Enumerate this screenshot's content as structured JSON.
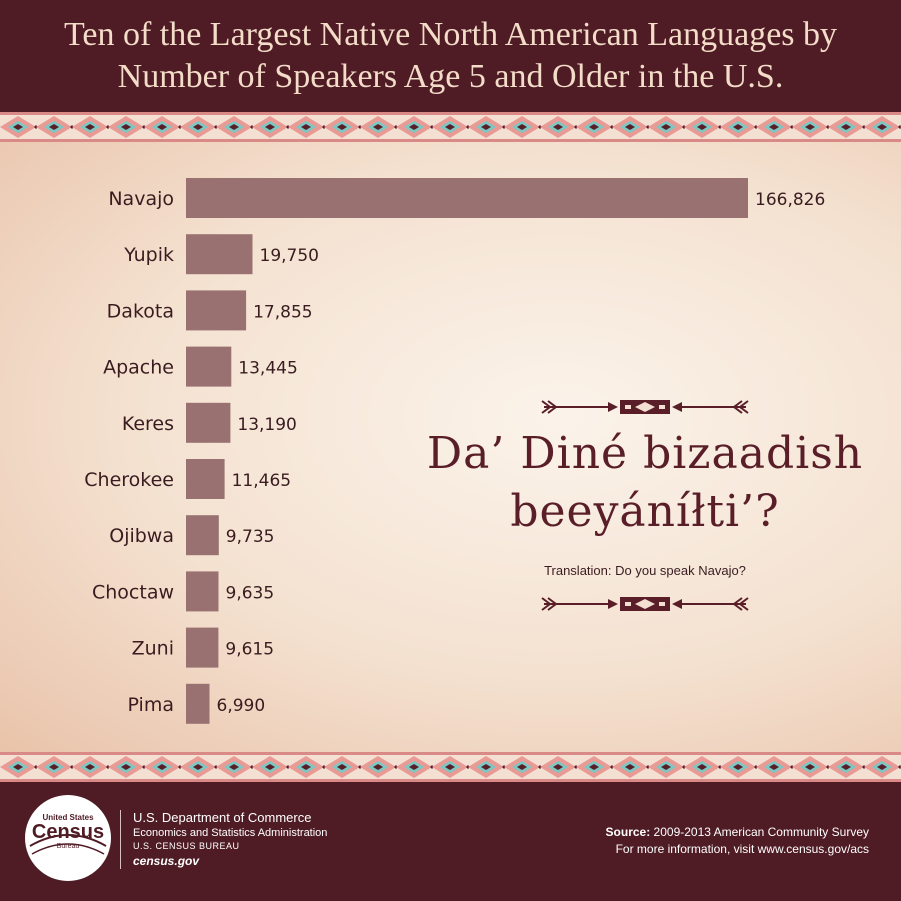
{
  "header": {
    "title_line1": "Ten of the Largest Native North American Languages by",
    "title_line2": "Number of Speakers Age 5 and Older in the U.S."
  },
  "chart_data": {
    "type": "bar",
    "orientation": "horizontal",
    "categories": [
      "Navajo",
      "Yupik",
      "Dakota",
      "Apache",
      "Keres",
      "Cherokee",
      "Ojibwa",
      "Choctaw",
      "Zuni",
      "Pima"
    ],
    "values": [
      166826,
      19750,
      17855,
      13445,
      13190,
      11465,
      9735,
      9635,
      9615,
      6990
    ],
    "value_labels": [
      "166,826",
      "19,750",
      "17,855",
      "13,445",
      "13,190",
      "11,465",
      "9,735",
      "9,635",
      "9,615",
      "6,990"
    ],
    "bar_color": "#9a7171",
    "grid": false
  },
  "phrase": {
    "line1": "Da’ Diné bizaadish",
    "line2": "beeyáníłti’?",
    "translation": "Translation: Do you speak Navajo?"
  },
  "footer": {
    "logo_top": "United States",
    "logo_main": "Census",
    "logo_bottom": "Bureau",
    "dept_line1": "U.S. Department of Commerce",
    "dept_line2": "Economics and Statistics Administration",
    "dept_line3": "U.S. CENSUS BUREAU",
    "dept_line4": "census.gov",
    "source_label": "Source:",
    "source_text": " 2009-2013 American Community Survey",
    "more_info": "For more information, visit www.census.gov/acs"
  },
  "colors": {
    "maroon": "#4f1c25",
    "bar": "#9a7171",
    "text_dark": "#3a1c20",
    "title": "#f3dcc8"
  }
}
